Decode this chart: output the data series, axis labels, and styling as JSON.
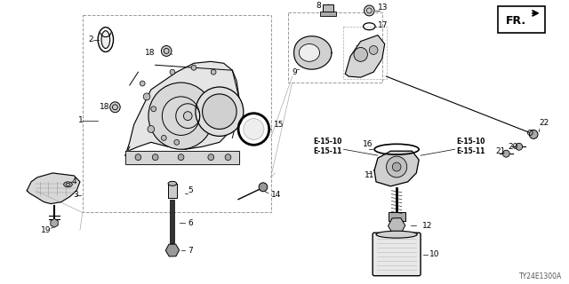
{
  "bg_color": "#ffffff",
  "lc": "#000000",
  "dc": "#aaaaaa",
  "figsize": [
    6.4,
    3.2
  ],
  "dpi": 100,
  "diagram_code": "TY24E1300A",
  "fr_label": "FR.",
  "ref1": "E-15-10\nE-15-11",
  "ref2": "E-15-10\nE-15-11"
}
